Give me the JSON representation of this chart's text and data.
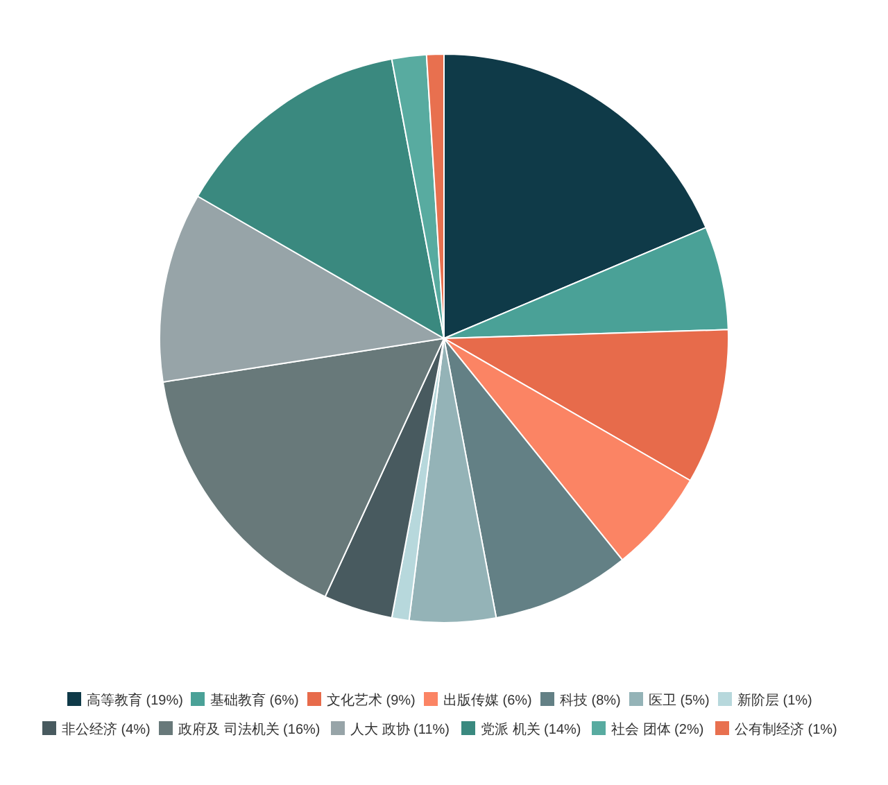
{
  "chart_data": {
    "type": "pie",
    "legend": "bottom",
    "categories": [
      "高等教育 (19%)",
      "基础教育 (6%)",
      "文化艺术 (9%)",
      "出版传媒 (6%)",
      "科技 (8%)",
      "医卫 (5%)",
      "新阶层 (1%)",
      "非公经济 (4%)",
      "政府及 司法机关 (16%)",
      "人大 政协 (11%)",
      "党派 机关 (14%)",
      "社会 团体 (2%)",
      "公有制经济 (1%)"
    ],
    "values": [
      19,
      6,
      9,
      6,
      8,
      5,
      1,
      4,
      16,
      11,
      14,
      2,
      1
    ],
    "colors": [
      "#0f3a48",
      "#4aa197",
      "#e76b4b",
      "#fb8464",
      "#638085",
      "#94b3b7",
      "#b7d8dc",
      "#485a5f",
      "#68797a",
      "#97a4a8",
      "#3a897f",
      "#58aba0",
      "#e8704f"
    ]
  }
}
